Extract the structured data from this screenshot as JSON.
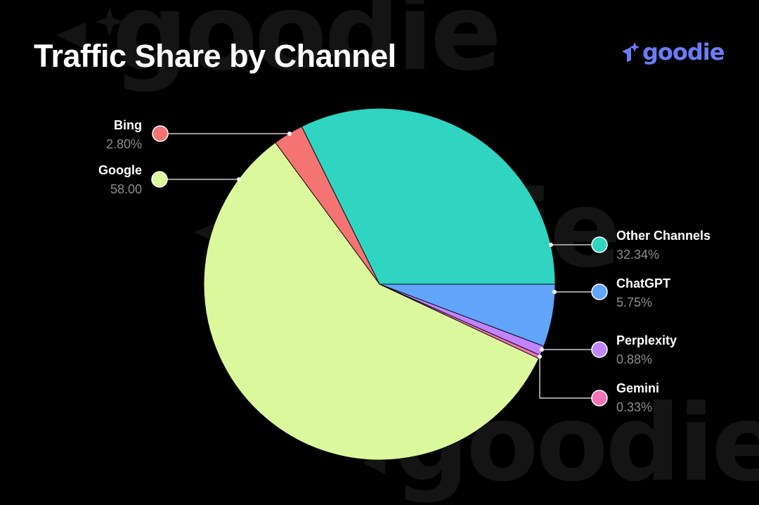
{
  "title": "Traffic Share by Channel",
  "brand": {
    "name": "goodie",
    "color": "#6b7cf6",
    "watermark_text": "goodie",
    "watermark_color": "#141414"
  },
  "chart_data": {
    "type": "pie",
    "title": "Traffic Share by Channel",
    "start_angle_deg": 0,
    "direction": "counterclockwise",
    "legend_position": "callouts",
    "slices": [
      {
        "label": "Other Channels",
        "value": 32.34,
        "display": "32.34%",
        "color": "#2fd5c1",
        "side": "right"
      },
      {
        "label": "Bing",
        "value": 2.8,
        "display": "2.80%",
        "color": "#f57373",
        "side": "left"
      },
      {
        "label": "Google",
        "value": 58.0,
        "display": "58.00",
        "color": "#dcf89c",
        "side": "left"
      },
      {
        "label": "Gemini",
        "value": 0.33,
        "display": "0.33%",
        "color": "#f472b6",
        "side": "right"
      },
      {
        "label": "Perplexity",
        "value": 0.88,
        "display": "0.88%",
        "color": "#c084fc",
        "side": "right"
      },
      {
        "label": "ChatGPT",
        "value": 5.75,
        "display": "5.75%",
        "color": "#60a5fa",
        "side": "right"
      }
    ]
  },
  "labels": {
    "bing": {
      "name": "Bing",
      "value": "2.80%"
    },
    "google": {
      "name": "Google",
      "value": "58.00"
    },
    "other": {
      "name": "Other Channels",
      "value": "32.34%"
    },
    "chatgpt": {
      "name": "ChatGPT",
      "value": "5.75%"
    },
    "perplexity": {
      "name": "Perplexity",
      "value": "0.88%"
    },
    "gemini": {
      "name": "Gemini",
      "value": "0.33%"
    }
  }
}
